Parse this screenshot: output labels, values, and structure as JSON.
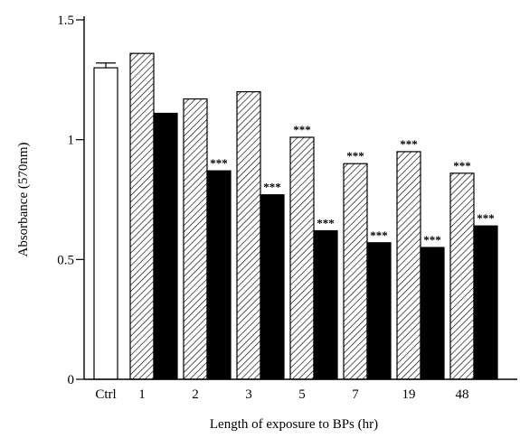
{
  "chart_data": {
    "type": "bar",
    "title": "",
    "xlabel": "Length of exposure to BPs (hr)",
    "ylabel": "Absorbance (570nm)",
    "ylim": [
      0,
      1.5
    ],
    "yticks": [
      {
        "value": 0,
        "label": "0"
      },
      {
        "value": 0.5,
        "label": "0.5"
      },
      {
        "value": 1,
        "label": "1"
      },
      {
        "value": 1.5,
        "label": "1.5"
      }
    ],
    "categories": [
      "Ctrl",
      "1",
      "2",
      "3",
      "5",
      "7",
      "19",
      "48"
    ],
    "series": [
      {
        "fill": "white",
        "values": [
          1.3,
          null,
          null,
          null,
          null,
          null,
          null,
          null
        ],
        "error": [
          0.02,
          null,
          null,
          null,
          null,
          null,
          null,
          null
        ],
        "significance": [
          "",
          "",
          "",
          "",
          "",
          "",
          "",
          ""
        ]
      },
      {
        "fill": "hatched",
        "values": [
          null,
          1.36,
          1.17,
          1.2,
          1.01,
          0.9,
          0.95,
          0.86
        ],
        "significance": [
          "",
          "",
          "",
          "",
          "***",
          "***",
          "***",
          "***"
        ]
      },
      {
        "fill": "black",
        "values": [
          null,
          1.11,
          0.87,
          0.77,
          0.62,
          0.57,
          0.55,
          0.64
        ],
        "significance": [
          "",
          "",
          "***",
          "***",
          "***",
          "***",
          "***",
          "***"
        ]
      }
    ],
    "grid": false,
    "legend": "none",
    "colors": {
      "outline": "#000000",
      "solid": "#000000",
      "open": "#ffffff"
    }
  }
}
